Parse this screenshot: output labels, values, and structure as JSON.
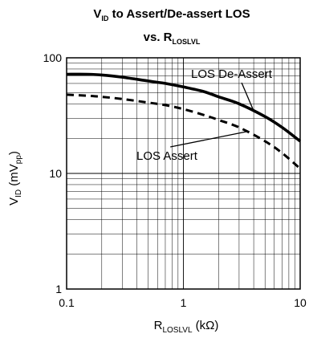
{
  "chart_data": {
    "type": "line",
    "title": {
      "line1_main": "V",
      "line1_sub": "ID",
      "line1_rest": " to Assert/De-assert LOS",
      "line2_main": "vs. R",
      "line2_sub": "LOSLVL"
    },
    "xlabel": {
      "main": "R",
      "sub": "LOSLVL",
      "rest": " (kΩ)"
    },
    "ylabel": {
      "main": "V",
      "sub1": "ID",
      "mid": " (mV",
      "sub2": "pp",
      "rest": ")"
    },
    "x_scale": "log",
    "y_scale": "log",
    "xlim": [
      0.1,
      10
    ],
    "ylim": [
      1,
      100
    ],
    "x_ticks": [
      {
        "value": 0.1,
        "label": "0.1"
      },
      {
        "value": 1,
        "label": "1"
      },
      {
        "value": 10,
        "label": "10"
      }
    ],
    "y_ticks": [
      {
        "value": 1,
        "label": "1"
      },
      {
        "value": 10,
        "label": "10"
      },
      {
        "value": 100,
        "label": "100"
      }
    ],
    "grid": true,
    "series": [
      {
        "name": "LOS De-Assert",
        "style": "solid",
        "color": "#000000",
        "x": [
          0.1,
          0.15,
          0.2,
          0.3,
          0.5,
          0.7,
          1,
          1.5,
          2,
          3,
          5,
          7,
          10
        ],
        "y": [
          72,
          72,
          71,
          68,
          63,
          60,
          56,
          51,
          46,
          40,
          31,
          25,
          19
        ]
      },
      {
        "name": "LOS Assert",
        "style": "dashed",
        "color": "#000000",
        "x": [
          0.1,
          0.15,
          0.2,
          0.3,
          0.5,
          0.7,
          1,
          1.5,
          2,
          3,
          5,
          7,
          10
        ],
        "y": [
          48,
          47,
          46,
          44,
          41,
          39,
          36,
          32,
          29,
          25,
          19,
          15,
          11
        ]
      }
    ],
    "annotations": [
      {
        "text": "LOS De-Assert",
        "series": "LOS De-Assert"
      },
      {
        "text": "LOS Assert",
        "series": "LOS Assert"
      }
    ]
  }
}
